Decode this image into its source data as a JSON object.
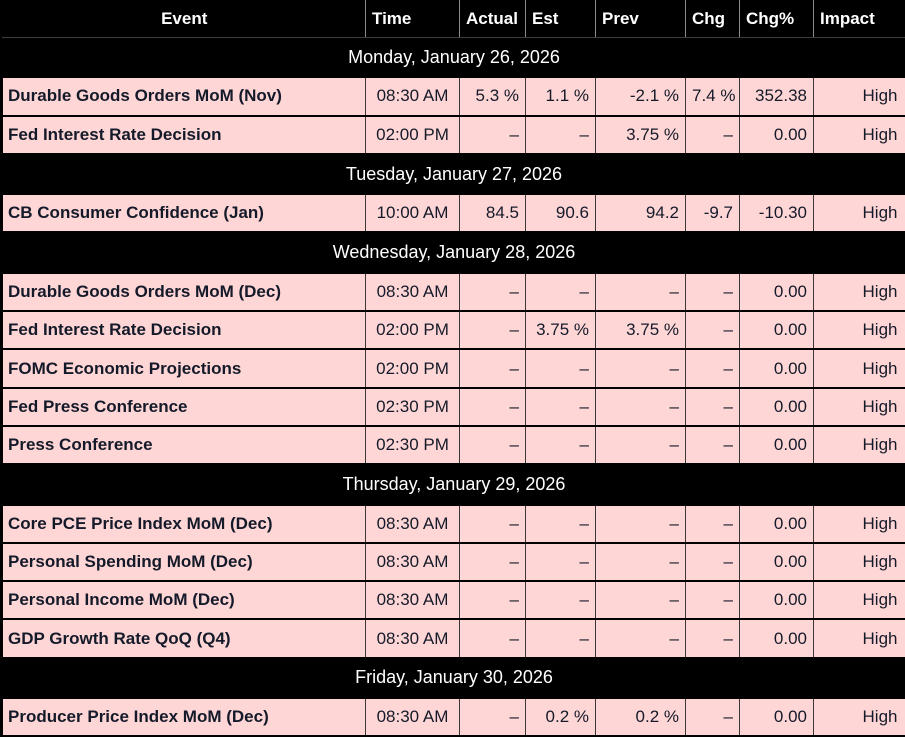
{
  "table": {
    "columns": [
      "Event",
      "Time",
      "Actual",
      "Est",
      "Prev",
      "Chg",
      "Chg%",
      "Impact"
    ],
    "days": [
      {
        "date": "Monday, January 26, 2026",
        "events": [
          {
            "event": "Durable Goods Orders MoM (Nov)",
            "time": "08:30 AM",
            "actual": "5.3 %",
            "est": "1.1 %",
            "prev": "-2.1 %",
            "chg": "7.4 %",
            "chg_pct": "352.38",
            "impact": "High"
          },
          {
            "event": "Fed Interest Rate Decision",
            "time": "02:00 PM",
            "actual": "–",
            "est": "–",
            "prev": "3.75 %",
            "chg": "–",
            "chg_pct": "0.00",
            "impact": "High"
          }
        ]
      },
      {
        "date": "Tuesday, January 27, 2026",
        "events": [
          {
            "event": "CB Consumer Confidence (Jan)",
            "time": "10:00 AM",
            "actual": "84.5",
            "est": "90.6",
            "prev": "94.2",
            "chg": "-9.7",
            "chg_pct": "-10.30",
            "impact": "High"
          }
        ]
      },
      {
        "date": "Wednesday, January 28, 2026",
        "events": [
          {
            "event": "Durable Goods Orders MoM (Dec)",
            "time": "08:30 AM",
            "actual": "–",
            "est": "–",
            "prev": "–",
            "chg": "–",
            "chg_pct": "0.00",
            "impact": "High"
          },
          {
            "event": "Fed Interest Rate Decision",
            "time": "02:00 PM",
            "actual": "–",
            "est": "3.75 %",
            "prev": "3.75 %",
            "chg": "–",
            "chg_pct": "0.00",
            "impact": "High"
          },
          {
            "event": "FOMC Economic Projections",
            "time": "02:00 PM",
            "actual": "–",
            "est": "–",
            "prev": "–",
            "chg": "–",
            "chg_pct": "0.00",
            "impact": "High"
          },
          {
            "event": "Fed Press Conference",
            "time": "02:30 PM",
            "actual": "–",
            "est": "–",
            "prev": "–",
            "chg": "–",
            "chg_pct": "0.00",
            "impact": "High"
          },
          {
            "event": "Press Conference",
            "time": "02:30 PM",
            "actual": "–",
            "est": "–",
            "prev": "–",
            "chg": "–",
            "chg_pct": "0.00",
            "impact": "High"
          }
        ]
      },
      {
        "date": "Thursday, January 29, 2026",
        "events": [
          {
            "event": "Core PCE Price Index MoM (Dec)",
            "time": "08:30 AM",
            "actual": "–",
            "est": "–",
            "prev": "–",
            "chg": "–",
            "chg_pct": "0.00",
            "impact": "High"
          },
          {
            "event": "Personal Spending MoM (Dec)",
            "time": "08:30 AM",
            "actual": "–",
            "est": "–",
            "prev": "–",
            "chg": "–",
            "chg_pct": "0.00",
            "impact": "High"
          },
          {
            "event": "Personal Income MoM (Dec)",
            "time": "08:30 AM",
            "actual": "–",
            "est": "–",
            "prev": "–",
            "chg": "–",
            "chg_pct": "0.00",
            "impact": "High"
          },
          {
            "event": "GDP Growth Rate QoQ (Q4)",
            "time": "08:30 AM",
            "actual": "–",
            "est": "–",
            "prev": "–",
            "chg": "–",
            "chg_pct": "0.00",
            "impact": "High"
          }
        ]
      },
      {
        "date": "Friday, January 30, 2026",
        "events": [
          {
            "event": "Producer Price Index MoM (Dec)",
            "time": "08:30 AM",
            "actual": "–",
            "est": "0.2 %",
            "prev": "0.2 %",
            "chg": "–",
            "chg_pct": "0.00",
            "impact": "High"
          }
        ]
      }
    ]
  },
  "colors": {
    "header_bg": "#000000",
    "header_text": "#ffffff",
    "date_row_bg": "#000000",
    "date_row_text": "#ffffff",
    "data_row_bg": "#ffd6d6",
    "data_row_text": "#141a29",
    "grid_line": "#383838",
    "row_divider": "#000000"
  }
}
